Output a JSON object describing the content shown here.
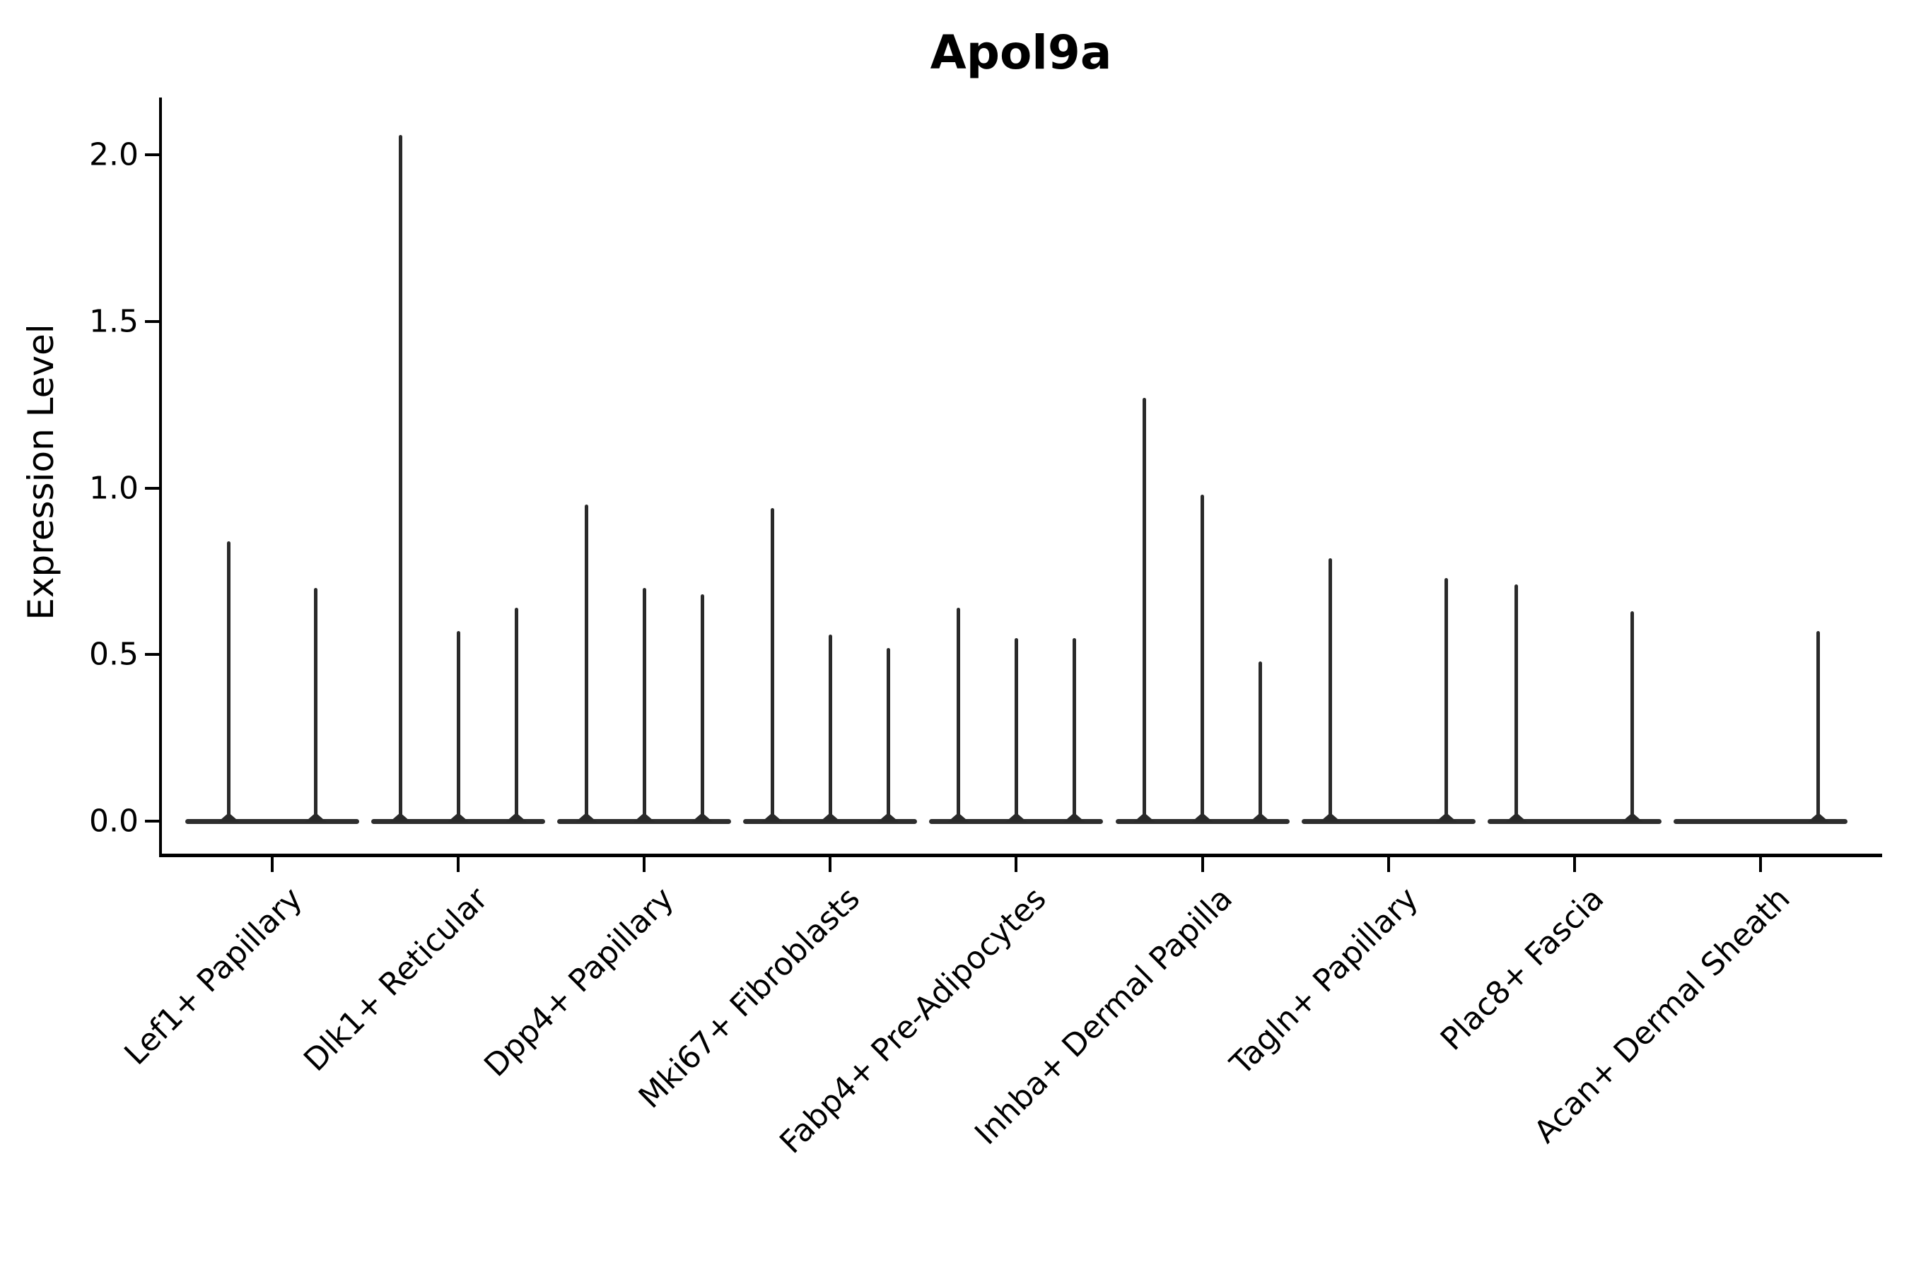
{
  "figure": {
    "title": "Apol9a",
    "ylabel": "Expression Level",
    "background": "#ffffff"
  },
  "chart_data": {
    "type": "violin",
    "title": "Apol9a",
    "xlabel": "",
    "ylabel": "Expression Level",
    "ylim": [
      -0.11,
      2.17
    ],
    "yticks": [
      0.0,
      0.5,
      1.0,
      1.5,
      2.0
    ],
    "ytick_labels": [
      "0.0",
      "0.5",
      "1.0",
      "1.5",
      "2.0"
    ],
    "grid": false,
    "legend": false,
    "violin_color": "#2a2a2a",
    "axis_color": "#000000",
    "categories": [
      "Lef1+ Papillary",
      "Dlk1+ Reticular",
      "Dpp4+ Papillary",
      "Mki67+ Fibroblasts",
      "Fabp4+ Pre-Adipocytes",
      "Inhba+ Dermal Papilla",
      "Tagln+ Papillary",
      "Plac8+ Fascia",
      "Acan+ Dermal Sheath"
    ],
    "groups": [
      {
        "label": "Lef1+ Papillary",
        "violin_peaks": [
          0.84,
          0.7
        ]
      },
      {
        "label": "Dlk1+ Reticular",
        "violin_peaks": [
          2.06,
          0.57,
          0.64
        ]
      },
      {
        "label": "Dpp4+ Papillary",
        "violin_peaks": [
          0.95,
          0.7,
          0.68
        ]
      },
      {
        "label": "Mki67+ Fibroblasts",
        "violin_peaks": [
          0.94,
          0.56,
          0.52
        ]
      },
      {
        "label": "Fabp4+ Pre-Adipocytes",
        "violin_peaks": [
          0.64,
          0.55,
          0.55
        ]
      },
      {
        "label": "Inhba+ Dermal Papilla",
        "violin_peaks": [
          1.27,
          0.98,
          0.48
        ]
      },
      {
        "label": "Tagln+ Papillary",
        "violin_peaks": [
          0.79,
          0.0,
          0.73
        ]
      },
      {
        "label": "Plac8+ Fascia",
        "violin_peaks": [
          0.71,
          0.0,
          0.63
        ]
      },
      {
        "label": "Acan+ Dermal Sheath",
        "violin_peaks": [
          0.0,
          0.0,
          0.57
        ]
      }
    ]
  }
}
